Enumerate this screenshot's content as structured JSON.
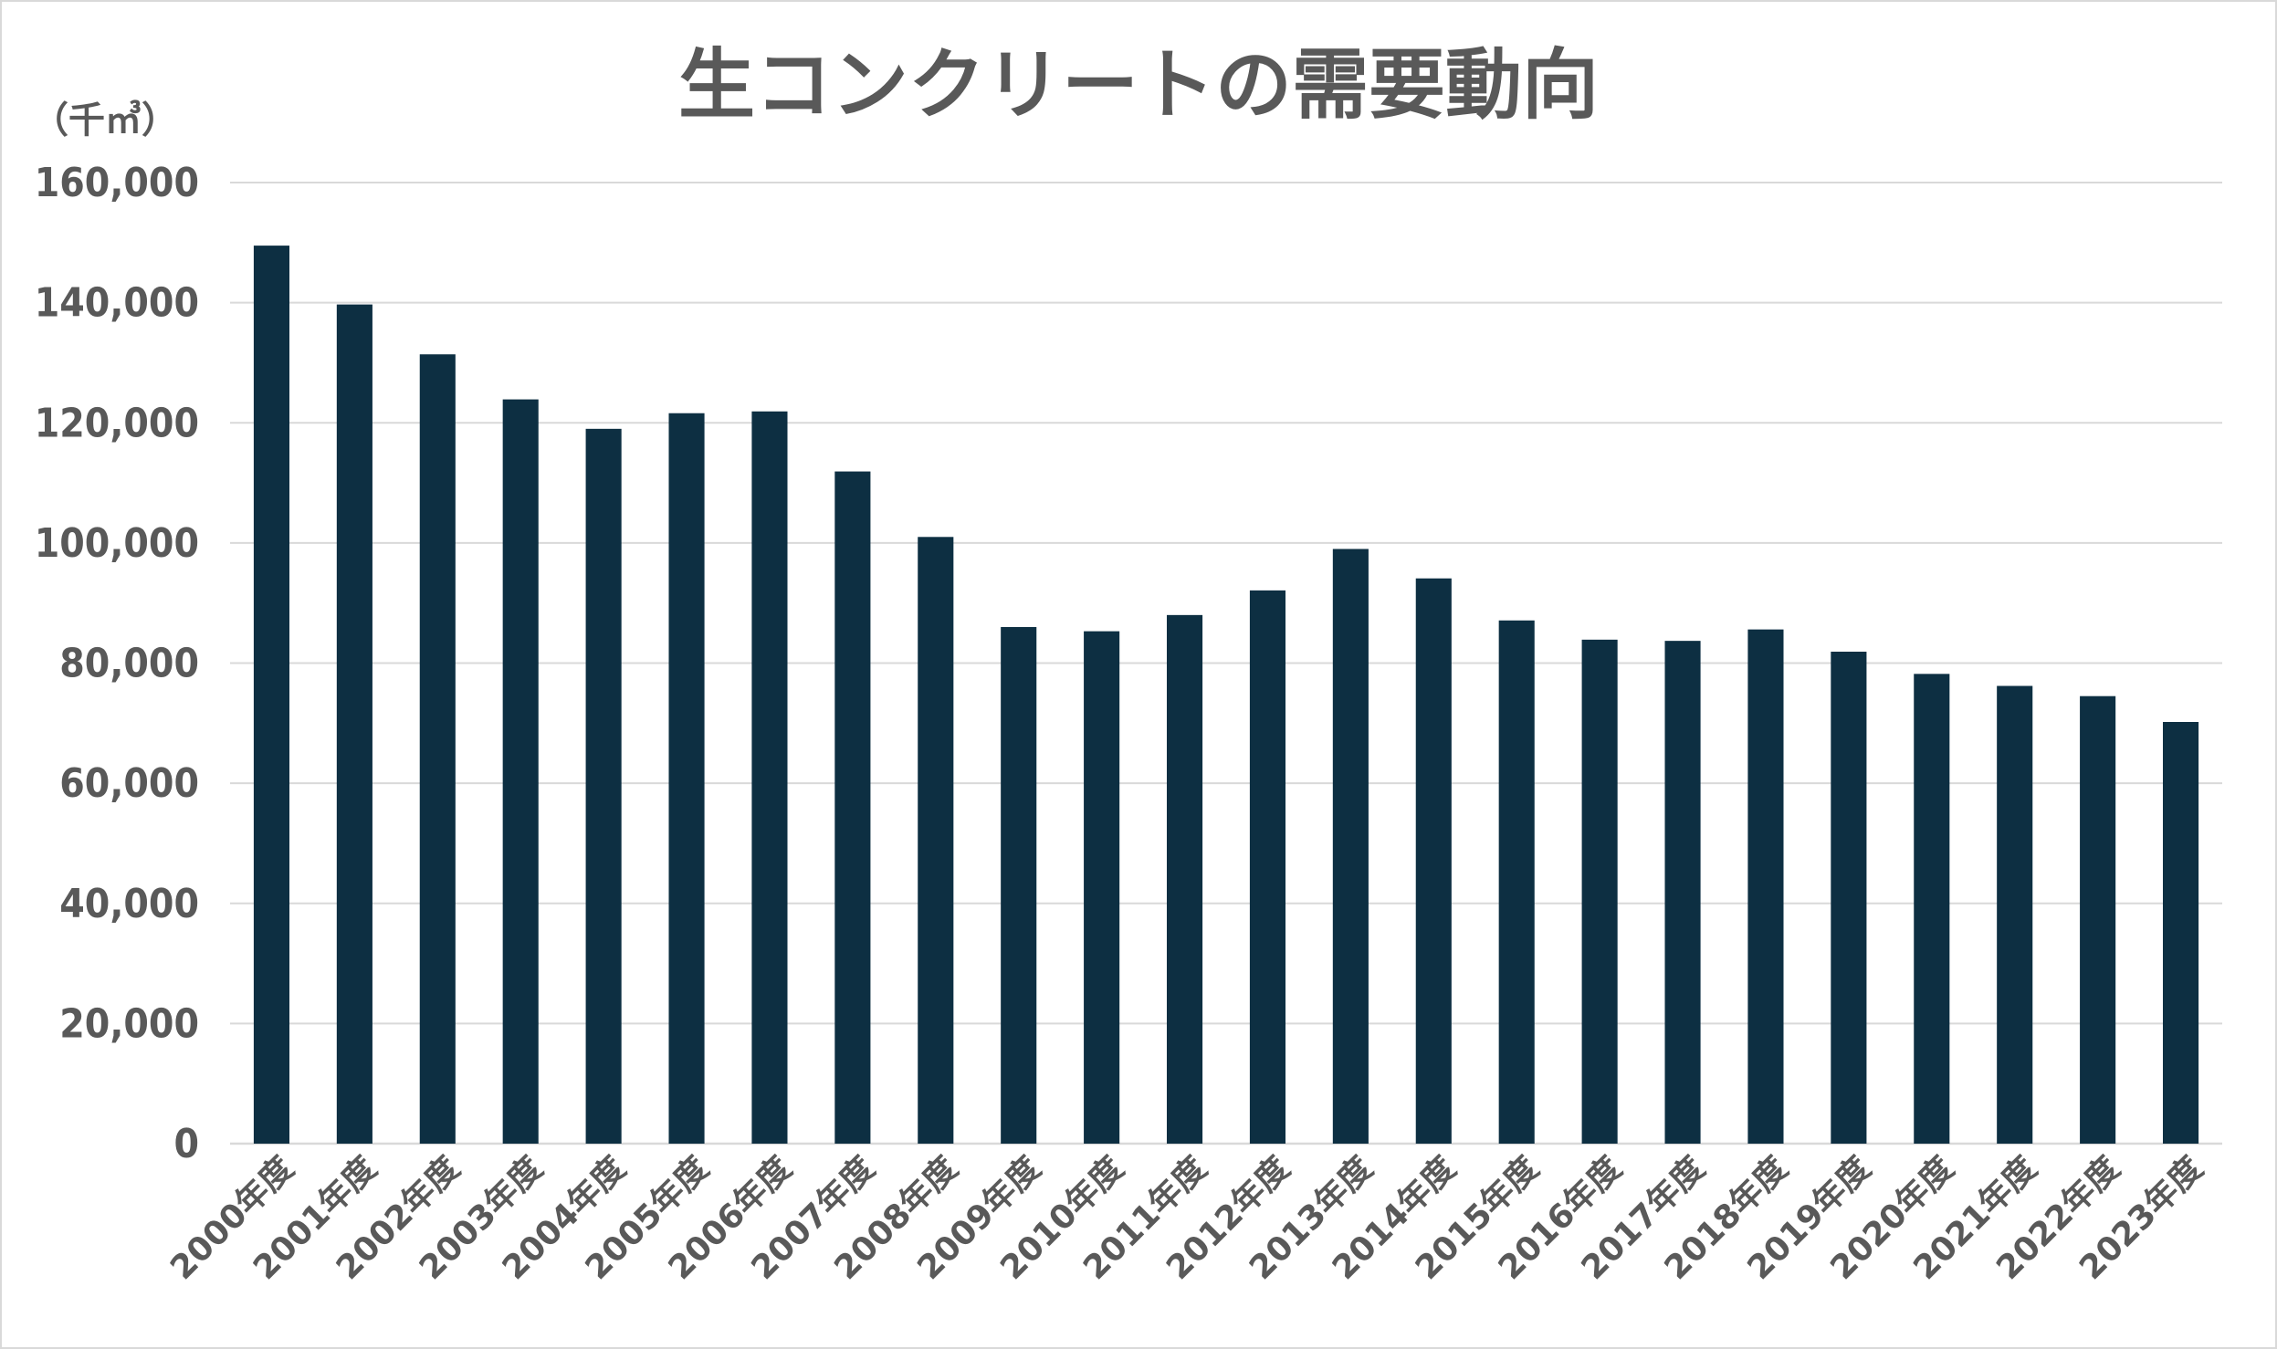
{
  "chart_data": {
    "type": "bar",
    "title": "生コンクリートの需要動向",
    "unit_label": "（千㎥）",
    "xlabel": "",
    "ylabel": "",
    "ylim": [
      0,
      160000
    ],
    "yticks": [
      "0",
      "20,000",
      "40,000",
      "60,000",
      "80,000",
      "100,000",
      "120,000",
      "140,000",
      "160,000"
    ],
    "grid": true,
    "legend": "none",
    "bar_color": "#0d2f42",
    "grid_color": "#d9d9d9",
    "text_color": "#595959",
    "categories": [
      "2000年度",
      "2001年度",
      "2002年度",
      "2003年度",
      "2004年度",
      "2005年度",
      "2006年度",
      "2007年度",
      "2008年度",
      "2009年度",
      "2010年度",
      "2011年度",
      "2012年度",
      "2013年度",
      "2014年度",
      "2015年度",
      "2016年度",
      "2017年度",
      "2018年度",
      "2019年度",
      "2020年度",
      "2021年度",
      "2022年度",
      "2023年度"
    ],
    "values": [
      149500,
      139700,
      131400,
      123900,
      119000,
      121600,
      121900,
      111900,
      101000,
      86000,
      85300,
      88000,
      92100,
      99000,
      94100,
      87100,
      83900,
      83700,
      85600,
      81900,
      78200,
      76200,
      74500,
      70200
    ]
  }
}
